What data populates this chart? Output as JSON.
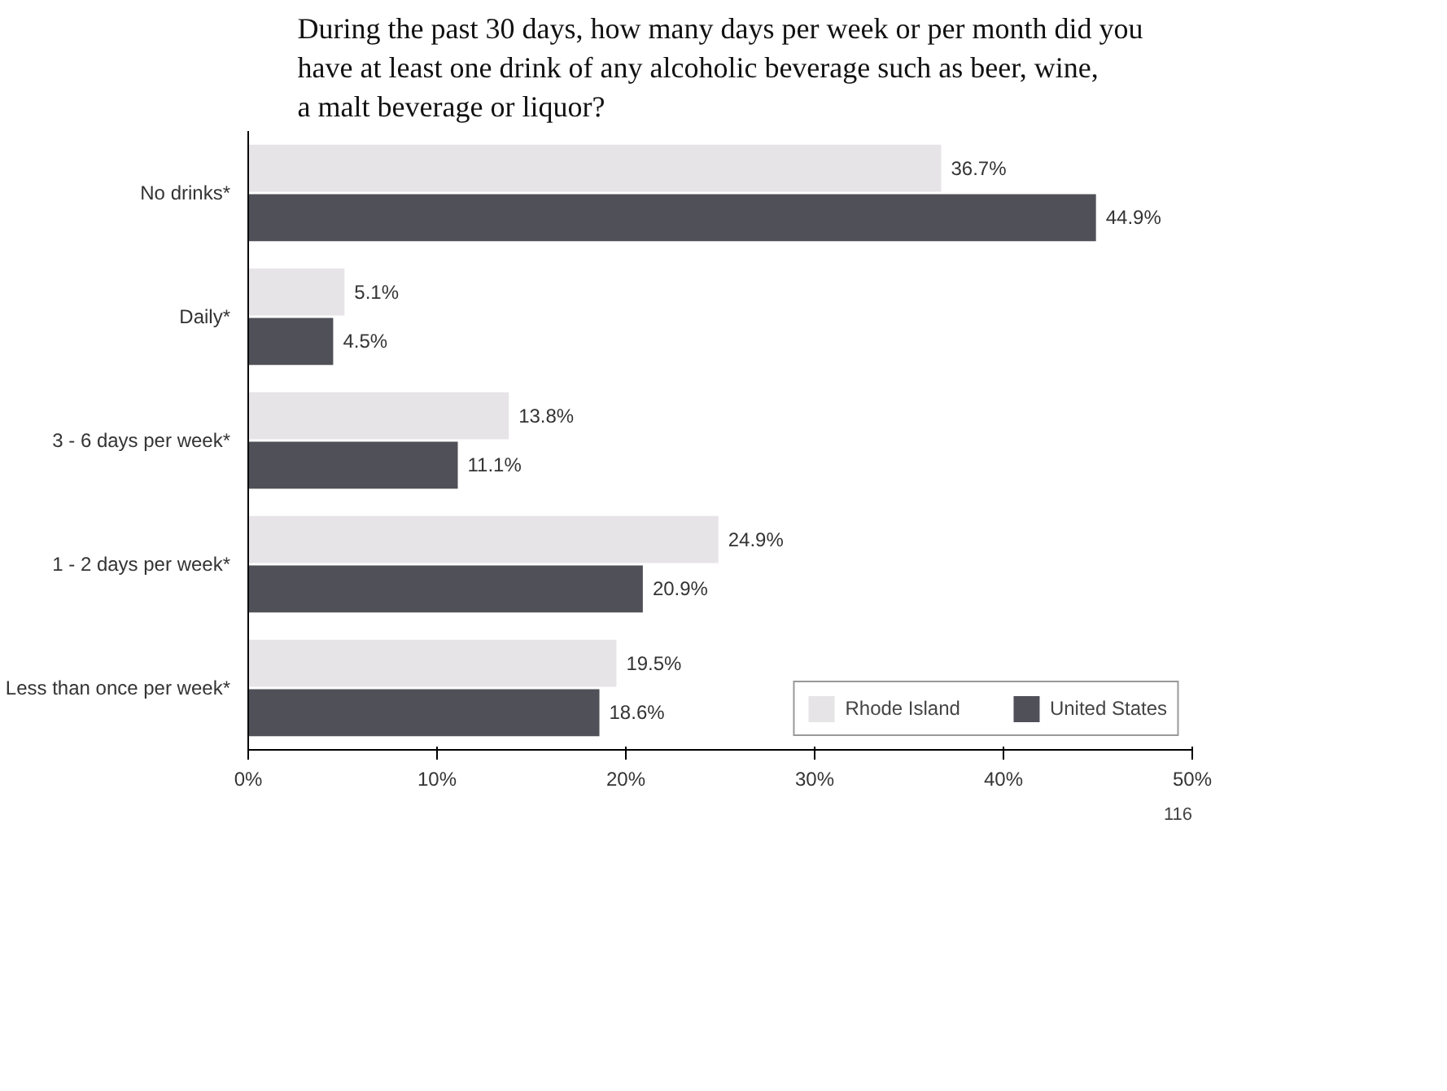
{
  "chart_data": {
    "type": "bar",
    "orientation": "horizontal",
    "title": "During the past 30 days, how many days per week or per month did you have at least one drink of any alcoholic beverage such as beer, wine, a malt beverage or liquor?",
    "categories": [
      "No drinks*",
      "Daily*",
      "3 - 6 days per week*",
      "1 - 2 days per week*",
      "Less than once per week*"
    ],
    "series": [
      {
        "name": "Rhode Island",
        "color": "#e6e4e6",
        "values": [
          36.7,
          5.1,
          13.8,
          24.9,
          19.5
        ],
        "value_labels": [
          "36.7%",
          "5.1%",
          "13.8%",
          "24.9%",
          "19.5%"
        ]
      },
      {
        "name": "United States",
        "color": "#505058",
        "values": [
          44.9,
          4.5,
          11.1,
          20.9,
          18.6
        ],
        "value_labels": [
          "44.9%",
          "4.5%",
          "11.1%",
          "20.9%",
          "18.6%"
        ]
      }
    ],
    "xlim": [
      0,
      50
    ],
    "xticks": [
      {
        "value": 0,
        "label": "0%"
      },
      {
        "value": 10,
        "label": "10%"
      },
      {
        "value": 20,
        "label": "20%"
      },
      {
        "value": 30,
        "label": "30%"
      },
      {
        "value": 40,
        "label": "40%"
      },
      {
        "value": 50,
        "label": "50%"
      }
    ],
    "grid": false,
    "legend": "bottom",
    "annotations": [
      "116"
    ]
  }
}
